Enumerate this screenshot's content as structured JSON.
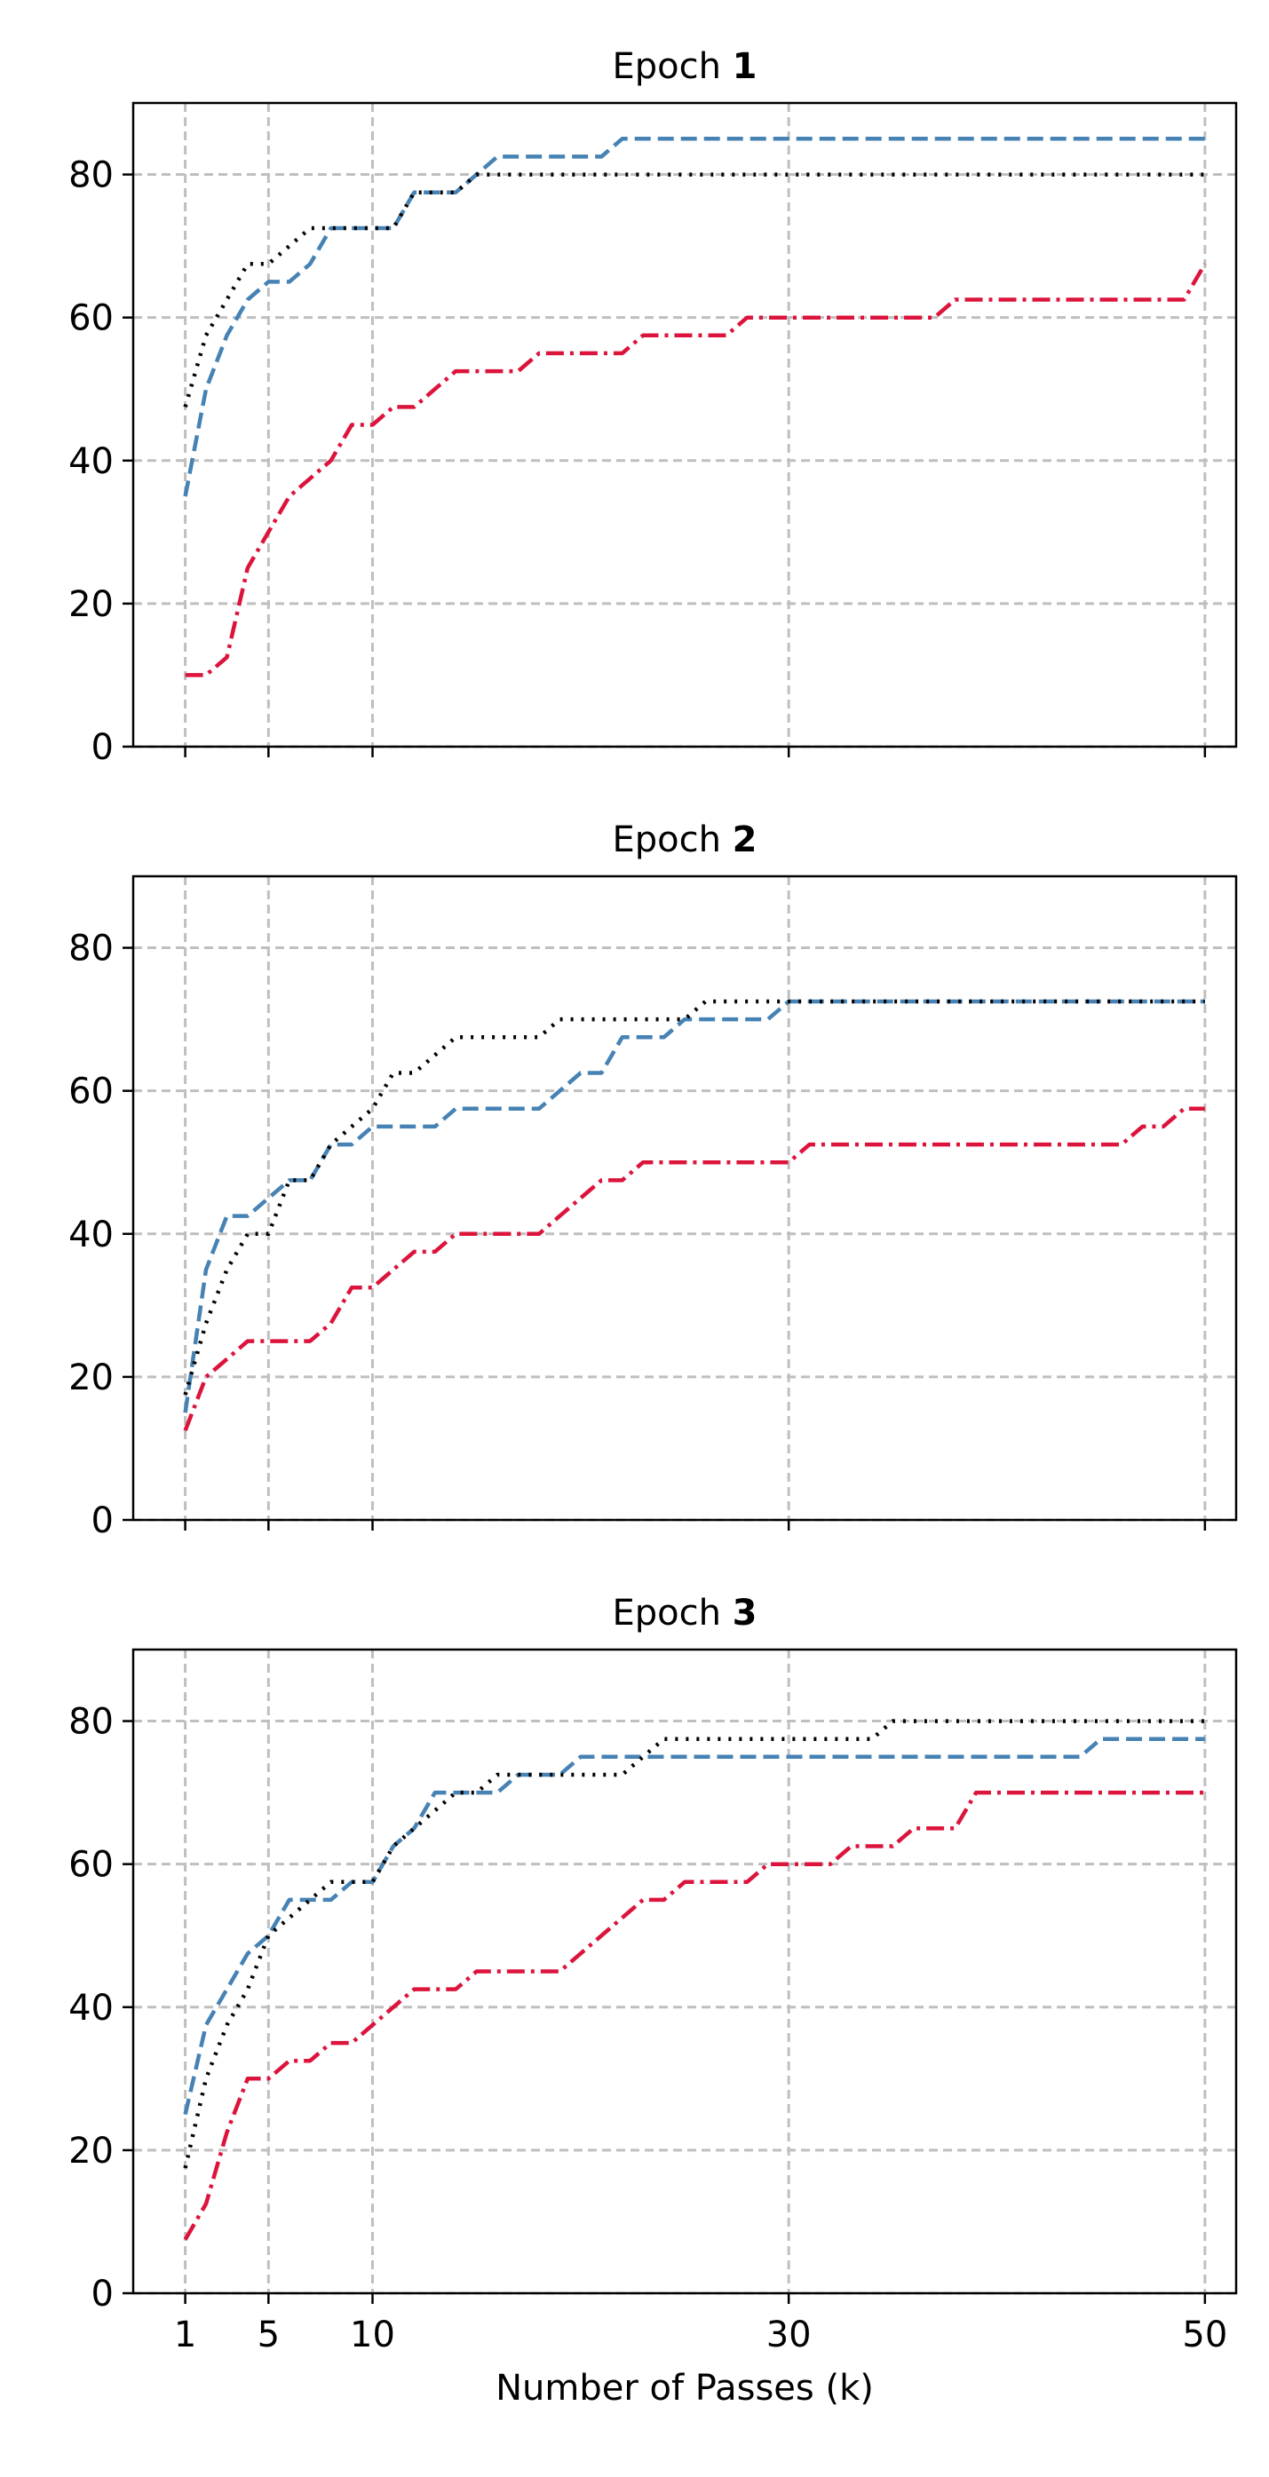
{
  "chart_data": [
    {
      "type": "line",
      "title_prefix": "Epoch ",
      "title_bold": "1",
      "ylim": [
        0,
        90
      ],
      "yticks": [
        0,
        20,
        40,
        60,
        80
      ],
      "xlim": [
        -1.5,
        51.5
      ],
      "xticks": [
        1,
        5,
        10,
        30,
        50
      ],
      "grid": true,
      "series": [
        {
          "color": "#4682b4",
          "style": "dashed",
          "x": [
            1,
            2,
            3,
            4,
            5,
            6,
            7,
            8,
            9,
            10,
            11,
            12,
            13,
            14,
            15,
            16,
            17,
            18,
            19,
            20,
            21,
            22,
            23,
            24,
            25,
            26,
            27,
            28,
            29,
            30,
            31,
            32,
            33,
            34,
            35,
            36,
            37,
            38,
            39,
            40,
            41,
            42,
            43,
            44,
            45,
            46,
            47,
            48,
            49,
            50
          ],
          "y": [
            35,
            50,
            57.5,
            62.5,
            65,
            65,
            67.5,
            72.5,
            72.5,
            72.5,
            72.5,
            77.5,
            77.5,
            77.5,
            80,
            82.5,
            82.5,
            82.5,
            82.5,
            82.5,
            82.5,
            85,
            85,
            85,
            85,
            85,
            85,
            85,
            85,
            85,
            85,
            85,
            85,
            85,
            85,
            85,
            85,
            85,
            85,
            85,
            85,
            85,
            85,
            85,
            85,
            85,
            85,
            85,
            85,
            85
          ]
        },
        {
          "color": "#000000",
          "style": "dotted",
          "x": [
            1,
            2,
            3,
            4,
            5,
            6,
            7,
            8,
            9,
            10,
            11,
            12,
            13,
            14,
            15,
            16,
            17,
            18,
            19,
            20,
            21,
            22,
            23,
            24,
            25,
            26,
            27,
            28,
            29,
            30,
            31,
            32,
            33,
            34,
            35,
            36,
            37,
            38,
            39,
            40,
            41,
            42,
            43,
            44,
            45,
            46,
            47,
            48,
            49,
            50
          ],
          "y": [
            47.5,
            57.5,
            62.5,
            67.5,
            67.5,
            70,
            72.5,
            72.5,
            72.5,
            72.5,
            72.5,
            77.5,
            77.5,
            77.5,
            80,
            80,
            80,
            80,
            80,
            80,
            80,
            80,
            80,
            80,
            80,
            80,
            80,
            80,
            80,
            80,
            80,
            80,
            80,
            80,
            80,
            80,
            80,
            80,
            80,
            80,
            80,
            80,
            80,
            80,
            80,
            80,
            80,
            80,
            80,
            80
          ]
        },
        {
          "color": "#dc143c",
          "style": "dashdot",
          "x": [
            1,
            2,
            3,
            4,
            5,
            6,
            7,
            8,
            9,
            10,
            11,
            12,
            13,
            14,
            15,
            16,
            17,
            18,
            19,
            20,
            21,
            22,
            23,
            24,
            25,
            26,
            27,
            28,
            29,
            30,
            31,
            32,
            33,
            34,
            35,
            36,
            37,
            38,
            39,
            40,
            41,
            42,
            43,
            44,
            45,
            46,
            47,
            48,
            49,
            50
          ],
          "y": [
            10,
            10,
            12.5,
            25,
            30,
            35,
            37.5,
            40,
            45,
            45,
            47.5,
            47.5,
            50,
            52.5,
            52.5,
            52.5,
            52.5,
            55,
            55,
            55,
            55,
            55,
            57.5,
            57.5,
            57.5,
            57.5,
            57.5,
            60,
            60,
            60,
            60,
            60,
            60,
            60,
            60,
            60,
            60,
            62.5,
            62.5,
            62.5,
            62.5,
            62.5,
            62.5,
            62.5,
            62.5,
            62.5,
            62.5,
            62.5,
            62.5,
            67.5
          ]
        }
      ]
    },
    {
      "type": "line",
      "title_prefix": "Epoch ",
      "title_bold": "2",
      "ylim": [
        0,
        90
      ],
      "yticks": [
        0,
        20,
        40,
        60,
        80
      ],
      "xlim": [
        -1.5,
        51.5
      ],
      "xticks": [
        1,
        5,
        10,
        30,
        50
      ],
      "grid": true,
      "series": [
        {
          "color": "#4682b4",
          "style": "dashed",
          "x": [
            1,
            2,
            3,
            4,
            5,
            6,
            7,
            8,
            9,
            10,
            11,
            12,
            13,
            14,
            15,
            16,
            17,
            18,
            19,
            20,
            21,
            22,
            23,
            24,
            25,
            26,
            27,
            28,
            29,
            30,
            31,
            32,
            33,
            34,
            35,
            36,
            37,
            38,
            39,
            40,
            41,
            42,
            43,
            44,
            45,
            46,
            47,
            48,
            49,
            50
          ],
          "y": [
            15,
            35,
            42.5,
            42.5,
            45,
            47.5,
            47.5,
            52.5,
            52.5,
            55,
            55,
            55,
            55,
            57.5,
            57.5,
            57.5,
            57.5,
            57.5,
            60,
            62.5,
            62.5,
            67.5,
            67.5,
            67.5,
            70,
            70,
            70,
            70,
            70,
            72.5,
            72.5,
            72.5,
            72.5,
            72.5,
            72.5,
            72.5,
            72.5,
            72.5,
            72.5,
            72.5,
            72.5,
            72.5,
            72.5,
            72.5,
            72.5,
            72.5,
            72.5,
            72.5,
            72.5,
            72.5
          ]
        },
        {
          "color": "#000000",
          "style": "dotted",
          "x": [
            1,
            2,
            3,
            4,
            5,
            6,
            7,
            8,
            9,
            10,
            11,
            12,
            13,
            14,
            15,
            16,
            17,
            18,
            19,
            20,
            21,
            22,
            23,
            24,
            25,
            26,
            27,
            28,
            29,
            30,
            31,
            32,
            33,
            34,
            35,
            36,
            37,
            38,
            39,
            40,
            41,
            42,
            43,
            44,
            45,
            46,
            47,
            48,
            49,
            50
          ],
          "y": [
            17.5,
            27.5,
            35,
            40,
            40,
            47.5,
            47.5,
            52.5,
            55,
            57.5,
            62.5,
            62.5,
            65,
            67.5,
            67.5,
            67.5,
            67.5,
            67.5,
            70,
            70,
            70,
            70,
            70,
            70,
            70,
            72.5,
            72.5,
            72.5,
            72.5,
            72.5,
            72.5,
            72.5,
            72.5,
            72.5,
            72.5,
            72.5,
            72.5,
            72.5,
            72.5,
            72.5,
            72.5,
            72.5,
            72.5,
            72.5,
            72.5,
            72.5,
            72.5,
            72.5,
            72.5,
            72.5
          ]
        },
        {
          "color": "#dc143c",
          "style": "dashdot",
          "x": [
            1,
            2,
            3,
            4,
            5,
            6,
            7,
            8,
            9,
            10,
            11,
            12,
            13,
            14,
            15,
            16,
            17,
            18,
            19,
            20,
            21,
            22,
            23,
            24,
            25,
            26,
            27,
            28,
            29,
            30,
            31,
            32,
            33,
            34,
            35,
            36,
            37,
            38,
            39,
            40,
            41,
            42,
            43,
            44,
            45,
            46,
            47,
            48,
            49,
            50
          ],
          "y": [
            12.5,
            20,
            22.5,
            25,
            25,
            25,
            25,
            27.5,
            32.5,
            32.5,
            35,
            37.5,
            37.5,
            40,
            40,
            40,
            40,
            40,
            42.5,
            45,
            47.5,
            47.5,
            50,
            50,
            50,
            50,
            50,
            50,
            50,
            50,
            52.5,
            52.5,
            52.5,
            52.5,
            52.5,
            52.5,
            52.5,
            52.5,
            52.5,
            52.5,
            52.5,
            52.5,
            52.5,
            52.5,
            52.5,
            52.5,
            55,
            55,
            57.5,
            57.5
          ]
        }
      ]
    },
    {
      "type": "line",
      "title_prefix": "Epoch ",
      "title_bold": "3",
      "ylim": [
        0,
        90
      ],
      "yticks": [
        0,
        20,
        40,
        60,
        80
      ],
      "xlim": [
        -1.5,
        51.5
      ],
      "xticks": [
        1,
        5,
        10,
        30,
        50
      ],
      "xlabel": "Number of Passes (k)",
      "grid": true,
      "series": [
        {
          "color": "#4682b4",
          "style": "dashed",
          "x": [
            1,
            2,
            3,
            4,
            5,
            6,
            7,
            8,
            9,
            10,
            11,
            12,
            13,
            14,
            15,
            16,
            17,
            18,
            19,
            20,
            21,
            22,
            23,
            24,
            25,
            26,
            27,
            28,
            29,
            30,
            31,
            32,
            33,
            34,
            35,
            36,
            37,
            38,
            39,
            40,
            41,
            42,
            43,
            44,
            45,
            46,
            47,
            48,
            49,
            50
          ],
          "y": [
            25,
            37.5,
            42.5,
            47.5,
            50,
            55,
            55,
            55,
            57.5,
            57.5,
            62.5,
            65,
            70,
            70,
            70,
            70,
            72.5,
            72.5,
            72.5,
            75,
            75,
            75,
            75,
            75,
            75,
            75,
            75,
            75,
            75,
            75,
            75,
            75,
            75,
            75,
            75,
            75,
            75,
            75,
            75,
            75,
            75,
            75,
            75,
            75,
            77.5,
            77.5,
            77.5,
            77.5,
            77.5,
            77.5
          ]
        },
        {
          "color": "#000000",
          "style": "dotted",
          "x": [
            1,
            2,
            3,
            4,
            5,
            6,
            7,
            8,
            9,
            10,
            11,
            12,
            13,
            14,
            15,
            16,
            17,
            18,
            19,
            20,
            21,
            22,
            23,
            24,
            25,
            26,
            27,
            28,
            29,
            30,
            31,
            32,
            33,
            34,
            35,
            36,
            37,
            38,
            39,
            40,
            41,
            42,
            43,
            44,
            45,
            46,
            47,
            48,
            49,
            50
          ],
          "y": [
            17.5,
            30,
            37.5,
            42.5,
            50,
            52.5,
            55,
            57.5,
            57.5,
            57.5,
            62.5,
            65,
            67.5,
            70,
            70,
            72.5,
            72.5,
            72.5,
            72.5,
            72.5,
            72.5,
            72.5,
            75,
            77.5,
            77.5,
            77.5,
            77.5,
            77.5,
            77.5,
            77.5,
            77.5,
            77.5,
            77.5,
            77.5,
            80,
            80,
            80,
            80,
            80,
            80,
            80,
            80,
            80,
            80,
            80,
            80,
            80,
            80,
            80,
            80
          ]
        },
        {
          "color": "#dc143c",
          "style": "dashdot",
          "x": [
            1,
            2,
            3,
            4,
            5,
            6,
            7,
            8,
            9,
            10,
            11,
            12,
            13,
            14,
            15,
            16,
            17,
            18,
            19,
            20,
            21,
            22,
            23,
            24,
            25,
            26,
            27,
            28,
            29,
            30,
            31,
            32,
            33,
            34,
            35,
            36,
            37,
            38,
            39,
            40,
            41,
            42,
            43,
            44,
            45,
            46,
            47,
            48,
            49,
            50
          ],
          "y": [
            7.5,
            12.5,
            22.5,
            30,
            30,
            32.5,
            32.5,
            35,
            35,
            37.5,
            40,
            42.5,
            42.5,
            42.5,
            45,
            45,
            45,
            45,
            45,
            47.5,
            50,
            52.5,
            55,
            55,
            57.5,
            57.5,
            57.5,
            57.5,
            60,
            60,
            60,
            60,
            62.5,
            62.5,
            62.5,
            65,
            65,
            65,
            70,
            70,
            70,
            70,
            70,
            70,
            70,
            70,
            70,
            70,
            70,
            70
          ]
        }
      ]
    }
  ]
}
